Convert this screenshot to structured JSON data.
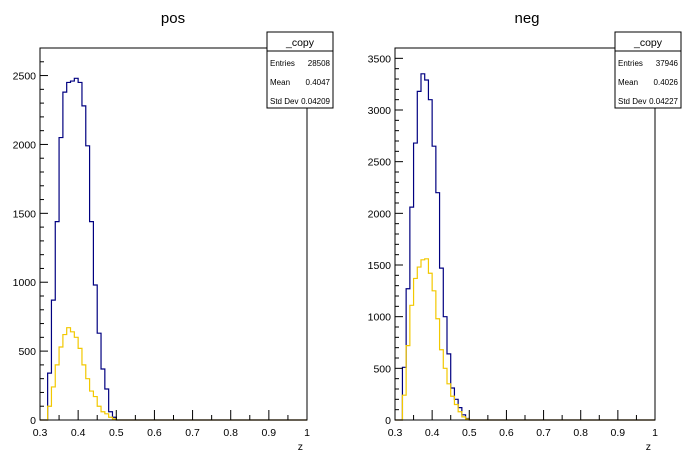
{
  "colors": {
    "neg_all": "#000080",
    "neg_sub": "#f2c800",
    "pos_all": "#000080",
    "pos_sub": "#f2c800",
    "axes": "#000000"
  },
  "chart_data": [
    {
      "type": "histogram",
      "title": "pos",
      "xlabel": "z",
      "xlim": [
        0.3,
        1.0
      ],
      "ylim": [
        0,
        2700
      ],
      "xticks": [
        0.3,
        0.4,
        0.5,
        0.6,
        0.7,
        0.8,
        0.9,
        1.0
      ],
      "xtick_labels": [
        "0.3",
        "0.4",
        "0.5",
        "0.6",
        "0.7",
        "0.8",
        "0.9",
        "1"
      ],
      "yticks": [
        0,
        500,
        1000,
        1500,
        2000,
        2500
      ],
      "ytick_labels": [
        "0",
        "500",
        "1000",
        "1500",
        "2000",
        "2500"
      ],
      "bin_edges_start": 0.3,
      "bin_width": 0.01,
      "series": [
        {
          "color_key": "pos_all",
          "values": [
            0,
            0,
            340,
            870,
            1440,
            2050,
            2380,
            2450,
            2460,
            2480,
            2450,
            2280,
            1990,
            1440,
            980,
            630,
            370,
            225,
            60,
            20,
            0,
            0,
            0,
            0,
            0,
            0,
            0,
            0,
            0,
            0,
            0,
            0,
            0,
            0,
            0,
            0,
            0,
            0,
            0,
            0,
            0,
            0,
            0,
            0,
            0,
            0,
            0,
            0,
            0,
            0,
            0,
            0,
            0,
            0,
            0,
            0,
            0,
            0,
            0,
            0,
            0,
            0,
            0,
            0,
            0,
            0,
            0,
            0,
            0,
            0
          ]
        },
        {
          "color_key": "pos_sub",
          "values": [
            0,
            0,
            100,
            240,
            400,
            530,
            620,
            670,
            640,
            600,
            520,
            400,
            300,
            210,
            170,
            100,
            60,
            45,
            20,
            8,
            0,
            0,
            0,
            0,
            0,
            0,
            0,
            0,
            0,
            0,
            0,
            0,
            0,
            0,
            0,
            0,
            0,
            0,
            0,
            0,
            0,
            0,
            0,
            0,
            0,
            0,
            0,
            0,
            0,
            0,
            0,
            0,
            0,
            0,
            0,
            0,
            0,
            0,
            0,
            0,
            0,
            0,
            0,
            0,
            0,
            0,
            0,
            0,
            0,
            0
          ]
        }
      ],
      "stats": {
        "name": "_copy",
        "rows": [
          [
            "Entries",
            "28508"
          ],
          [
            "Mean",
            "0.4047"
          ],
          [
            "Std Dev",
            "0.04209"
          ]
        ]
      }
    },
    {
      "type": "histogram",
      "title": "neg",
      "xlabel": "z",
      "xlim": [
        0.3,
        1.0
      ],
      "ylim": [
        0,
        3600
      ],
      "xticks": [
        0.3,
        0.4,
        0.5,
        0.6,
        0.7,
        0.8,
        0.9,
        1.0
      ],
      "xtick_labels": [
        "0.3",
        "0.4",
        "0.5",
        "0.6",
        "0.7",
        "0.8",
        "0.9",
        "1"
      ],
      "yticks": [
        0,
        500,
        1000,
        1500,
        2000,
        2500,
        3000,
        3500
      ],
      "ytick_labels": [
        "0",
        "500",
        "1000",
        "1500",
        "2000",
        "2500",
        "3000",
        "3500"
      ],
      "bin_edges_start": 0.3,
      "bin_width": 0.01,
      "series": [
        {
          "color_key": "neg_all",
          "values": [
            0,
            0,
            510,
            1270,
            2060,
            2680,
            3180,
            3350,
            3290,
            3100,
            2650,
            2200,
            1470,
            1000,
            640,
            310,
            200,
            120,
            50,
            15,
            0,
            0,
            0,
            0,
            0,
            0,
            0,
            0,
            0,
            0,
            0,
            0,
            0,
            0,
            0,
            0,
            0,
            0,
            0,
            0,
            0,
            0,
            0,
            0,
            0,
            0,
            0,
            0,
            0,
            0,
            0,
            0,
            0,
            0,
            0,
            0,
            0,
            0,
            0,
            0,
            0,
            0,
            0,
            0,
            0,
            0,
            0,
            0,
            0,
            0
          ]
        },
        {
          "color_key": "neg_sub",
          "values": [
            0,
            0,
            240,
            720,
            1110,
            1370,
            1480,
            1550,
            1560,
            1420,
            1250,
            980,
            680,
            500,
            350,
            230,
            150,
            80,
            30,
            10,
            0,
            0,
            0,
            0,
            0,
            0,
            0,
            0,
            0,
            0,
            0,
            0,
            0,
            0,
            0,
            0,
            0,
            0,
            0,
            0,
            0,
            0,
            0,
            0,
            0,
            0,
            0,
            0,
            0,
            0,
            0,
            0,
            0,
            0,
            0,
            0,
            0,
            0,
            0,
            0,
            0,
            0,
            0,
            0,
            0,
            0,
            0,
            0,
            0,
            0
          ]
        }
      ],
      "stats": {
        "name": "_copy",
        "rows": [
          [
            "Entries",
            "37946"
          ],
          [
            "Mean",
            "0.4026"
          ],
          [
            "Std Dev",
            "0.04227"
          ]
        ]
      }
    }
  ]
}
